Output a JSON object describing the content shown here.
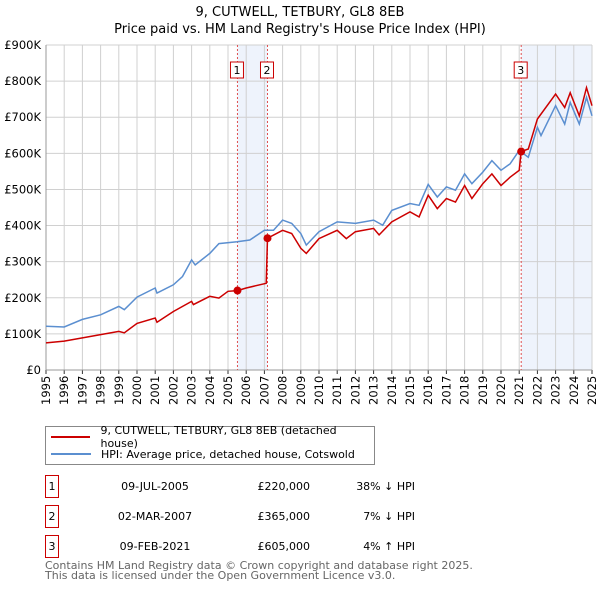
{
  "chart_data": {
    "type": "line",
    "title": "9, CUTWELL, TETBURY, GL8 8EB",
    "subtitle": "Price paid vs. HM Land Registry's House Price Index (HPI)",
    "xlabel": "",
    "ylabel": "",
    "xlim": [
      1995,
      2025
    ],
    "ylim": [
      0,
      900000
    ],
    "y_ticks": [
      0,
      100000,
      200000,
      300000,
      400000,
      500000,
      600000,
      700000,
      800000,
      900000
    ],
    "y_tick_labels": [
      "£0",
      "£100K",
      "£200K",
      "£300K",
      "£400K",
      "£500K",
      "£600K",
      "£700K",
      "£800K",
      "£900K"
    ],
    "x_ticks": [
      "1995",
      "1996",
      "1997",
      "1998",
      "1999",
      "2000",
      "2001",
      "2002",
      "2003",
      "2004",
      "2005",
      "2006",
      "2007",
      "2008",
      "2009",
      "2010",
      "2011",
      "2012",
      "2013",
      "2014",
      "2015",
      "2016",
      "2017",
      "2018",
      "2019",
      "2020",
      "2021",
      "2022",
      "2023",
      "2024",
      "2025"
    ],
    "grid": true,
    "series": [
      {
        "name": "9, CUTWELL, TETBURY, GL8 8EB (detached house)",
        "color": "#cc0000",
        "x": [
          1995,
          1996,
          1997,
          1998,
          1999,
          1999.3,
          2000,
          2001,
          2001.1,
          2002,
          2003,
          2003.1,
          2004,
          2004.5,
          2005,
          2005.52,
          2006,
          2007.1,
          2007.17,
          2008,
          2008.5,
          2009,
          2009.3,
          2010,
          2011,
          2011.5,
          2012,
          2013,
          2013.3,
          2014,
          2015,
          2015.5,
          2016,
          2016.5,
          2017,
          2017.5,
          2018,
          2018.4,
          2019,
          2019.5,
          2020,
          2020.5,
          2021,
          2021.11,
          2021.5,
          2022,
          2023,
          2023.5,
          2023.8,
          2024.3,
          2024.7,
          2025
        ],
        "y": [
          75000,
          80000,
          89000,
          98000,
          107000,
          103000,
          129000,
          144000,
          132000,
          162000,
          190000,
          181000,
          204000,
          199000,
          218000,
          220000,
          227000,
          240000,
          365000,
          387000,
          378000,
          337000,
          323000,
          364000,
          387000,
          364000,
          383000,
          392000,
          374000,
          410000,
          438000,
          424000,
          484000,
          447000,
          475000,
          465000,
          511000,
          475000,
          516000,
          543000,
          511000,
          534000,
          553000,
          605000,
          612000,
          695000,
          764000,
          727000,
          768000,
          704000,
          782000,
          732000
        ]
      },
      {
        "name": "HPI: Average price, detached house, Cotswold",
        "color": "#5b8fd0",
        "x": [
          1995,
          1996,
          1997,
          1998,
          1999,
          1999.3,
          2000,
          2001,
          2001.1,
          2002,
          2002.5,
          2003,
          2003.2,
          2004,
          2004.5,
          2005.5,
          2006.2,
          2007,
          2007.5,
          2008,
          2008.5,
          2009,
          2009.3,
          2010,
          2011,
          2012,
          2013,
          2013.5,
          2014,
          2015,
          2015.5,
          2016,
          2016.5,
          2017,
          2017.5,
          2018,
          2018.4,
          2019,
          2019.5,
          2020,
          2020.5,
          2021,
          2021.5,
          2022,
          2022.2,
          2023,
          2023.5,
          2023.8,
          2024.3,
          2024.7,
          2025
        ],
        "y": [
          121000,
          119000,
          140000,
          153000,
          176000,
          167000,
          202000,
          227000,
          213000,
          236000,
          259000,
          305000,
          291000,
          323000,
          350000,
          355000,
          360000,
          387000,
          387000,
          415000,
          406000,
          378000,
          346000,
          383000,
          410000,
          406000,
          415000,
          401000,
          442000,
          461000,
          456000,
          514000,
          479000,
          507000,
          498000,
          543000,
          516000,
          548000,
          580000,
          553000,
          571000,
          608000,
          589000,
          672000,
          649000,
          732000,
          681000,
          741000,
          681000,
          755000,
          704000
        ]
      }
    ],
    "sales": [
      {
        "label": "1",
        "x": 2005.52,
        "y": 220000
      },
      {
        "label": "2",
        "x": 2007.17,
        "y": 365000
      },
      {
        "label": "3",
        "x": 2021.11,
        "y": 605000
      }
    ],
    "shaded_ranges": [
      [
        2005.52,
        2007.17
      ],
      [
        2021.11,
        2025
      ]
    ],
    "legend_placement": "bottom"
  },
  "legend": {
    "red": "9, CUTWELL, TETBURY, GL8 8EB (detached house)",
    "blue": "HPI: Average price, detached house, Cotswold"
  },
  "transactions": [
    {
      "num": "1",
      "date": "09-JUL-2005",
      "price": "£220,000",
      "delta": "38% ↓ HPI"
    },
    {
      "num": "2",
      "date": "02-MAR-2007",
      "price": "£365,000",
      "delta": "7% ↓ HPI"
    },
    {
      "num": "3",
      "date": "09-FEB-2021",
      "price": "£605,000",
      "delta": "4% ↑ HPI"
    }
  ],
  "footer": {
    "line1": "Contains HM Land Registry data © Crown copyright and database right 2025.",
    "line2": "This data is licensed under the Open Government Licence v3.0."
  }
}
